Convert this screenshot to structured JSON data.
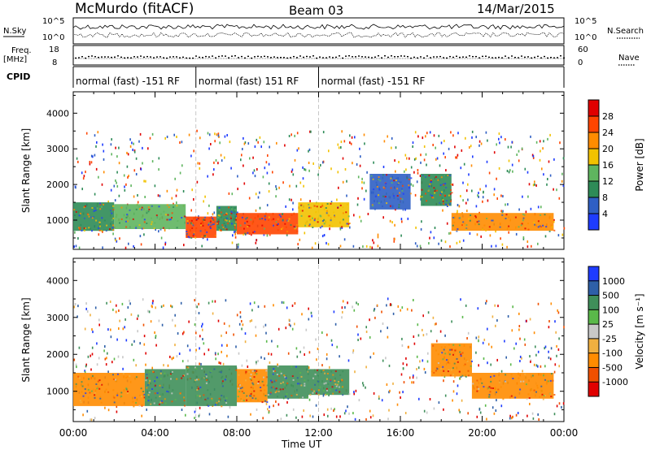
{
  "header": {
    "station": "McMurdo (fitACF)",
    "beam": "Beam 03",
    "date": "14/Mar/2015"
  },
  "top_panels": {
    "nsky_label": "N.Sky",
    "nsearch_label": "N.Search",
    "noise_ticks_left": [
      "10^5",
      "10^0"
    ],
    "noise_ticks_right": [
      "10^5",
      "10^0"
    ],
    "freq_label": "Freq.",
    "freq_unit": "[MHz]",
    "freq_ticks": [
      "18",
      "8"
    ],
    "nave_label": "Nave",
    "nave_ticks": [
      "60",
      "0"
    ],
    "cpid_label": "CPID",
    "cpid_segments": [
      {
        "label": "normal (fast) -151 RF",
        "start": 0,
        "end": 6
      },
      {
        "label": "normal (fast) 151 RF",
        "start": 6,
        "end": 12
      },
      {
        "label": "normal (fast) -151 RF",
        "start": 12,
        "end": 24
      }
    ]
  },
  "chart_data": [
    {
      "type": "heatmap",
      "title": "",
      "xlabel": "Time UT",
      "ylabel": "Slant Range [km]",
      "x_ticks": [
        "00:00",
        "04:00",
        "08:00",
        "12:00",
        "16:00",
        "20:00",
        "00:00"
      ],
      "xlim_hours": [
        0,
        24
      ],
      "y_ticks": [
        1000,
        2000,
        3000,
        4000
      ],
      "ylim": [
        180,
        4600
      ],
      "colorbar": {
        "label": "Power [dB]",
        "ticks": [
          4,
          8,
          12,
          16,
          20,
          24,
          28
        ],
        "colors": [
          "#1e3cff",
          "#2f5fc4",
          "#2e8b57",
          "#5fb55f",
          "#f2c200",
          "#ff8c00",
          "#ff4500",
          "#e00000"
        ]
      },
      "bands": [
        {
          "t0": 0.0,
          "t1": 2.0,
          "r0": 700,
          "r1": 1500,
          "value": 12
        },
        {
          "t0": 2.0,
          "t1": 5.5,
          "r0": 750,
          "r1": 1450,
          "value": 16
        },
        {
          "t0": 5.5,
          "t1": 7.0,
          "r0": 500,
          "r1": 1100,
          "value": 28
        },
        {
          "t0": 7.0,
          "t1": 8.0,
          "r0": 700,
          "r1": 1400,
          "value": 12
        },
        {
          "t0": 8.0,
          "t1": 11.0,
          "r0": 600,
          "r1": 1200,
          "value": 28
        },
        {
          "t0": 11.0,
          "t1": 13.5,
          "r0": 800,
          "r1": 1500,
          "value": 20
        },
        {
          "t0": 14.5,
          "t1": 16.5,
          "r0": 1300,
          "r1": 2300,
          "value": 8
        },
        {
          "t0": 17.0,
          "t1": 18.5,
          "r0": 1400,
          "r1": 2300,
          "value": 12
        },
        {
          "t0": 18.5,
          "t1": 23.5,
          "r0": 700,
          "r1": 1200,
          "value": 24
        }
      ]
    },
    {
      "type": "heatmap",
      "title": "",
      "xlabel": "Time UT",
      "ylabel": "Slant Range [km]",
      "x_ticks": [
        "00:00",
        "04:00",
        "08:00",
        "12:00",
        "16:00",
        "20:00",
        "00:00"
      ],
      "xlim_hours": [
        0,
        24
      ],
      "y_ticks": [
        1000,
        2000,
        3000,
        4000
      ],
      "ylim": [
        180,
        4600
      ],
      "colorbar": {
        "label": "Velocity [m s⁻¹]",
        "ticks": [
          1000,
          500,
          100,
          25,
          -25,
          -100,
          -500,
          -1000
        ],
        "colors": [
          "#1e3cff",
          "#2e5fa8",
          "#3f8f5a",
          "#5ab84a",
          "#c8c8c8",
          "#f0b040",
          "#ff8c00",
          "#f05000",
          "#e00000"
        ]
      },
      "bands": [
        {
          "t0": 0.0,
          "t1": 3.5,
          "r0": 600,
          "r1": 1500,
          "value": -300
        },
        {
          "t0": 3.5,
          "t1": 5.5,
          "r0": 600,
          "r1": 1600,
          "value": 100
        },
        {
          "t0": 5.5,
          "t1": 8.0,
          "r0": 600,
          "r1": 1700,
          "value": 300
        },
        {
          "t0": 8.0,
          "t1": 9.5,
          "r0": 700,
          "r1": 1600,
          "value": -300
        },
        {
          "t0": 9.5,
          "t1": 11.5,
          "r0": 800,
          "r1": 1700,
          "value": 300
        },
        {
          "t0": 11.5,
          "t1": 13.5,
          "r0": 900,
          "r1": 1600,
          "value": 300
        },
        {
          "t0": 17.5,
          "t1": 19.5,
          "r0": 1400,
          "r1": 2300,
          "value": -300
        },
        {
          "t0": 19.5,
          "t1": 23.5,
          "r0": 800,
          "r1": 1500,
          "value": -300
        }
      ]
    }
  ]
}
